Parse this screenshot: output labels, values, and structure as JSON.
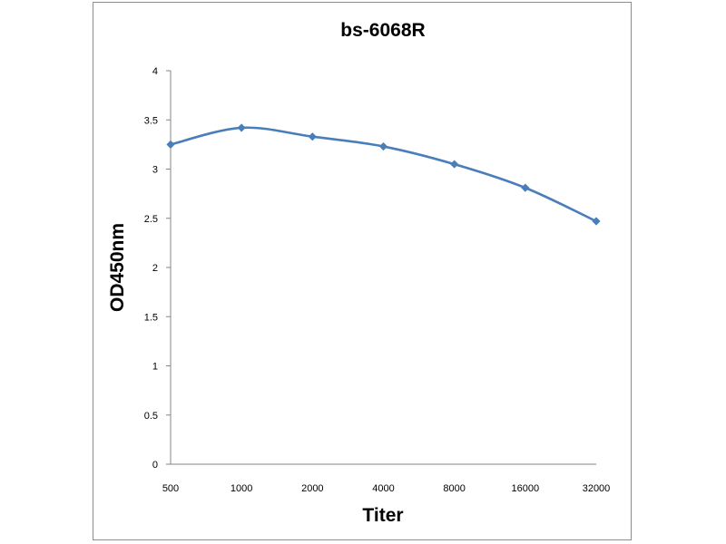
{
  "chart_data": {
    "type": "line",
    "title": "bs-6068R",
    "xlabel": "Titer",
    "ylabel": "OD450nm",
    "categories": [
      "500",
      "1000",
      "2000",
      "4000",
      "8000",
      "16000",
      "32000"
    ],
    "series": [
      {
        "values": [
          3.25,
          3.42,
          3.33,
          3.23,
          3.05,
          2.81,
          2.47
        ],
        "color": "#4a7ebb",
        "marker": "diamond",
        "smooth": true
      }
    ],
    "ylim": [
      0,
      4
    ],
    "yticks": [
      "0",
      "0.5",
      "1",
      "1.5",
      "2",
      "2.5",
      "3",
      "3.5",
      "4"
    ],
    "grid": false,
    "legend": "none"
  }
}
